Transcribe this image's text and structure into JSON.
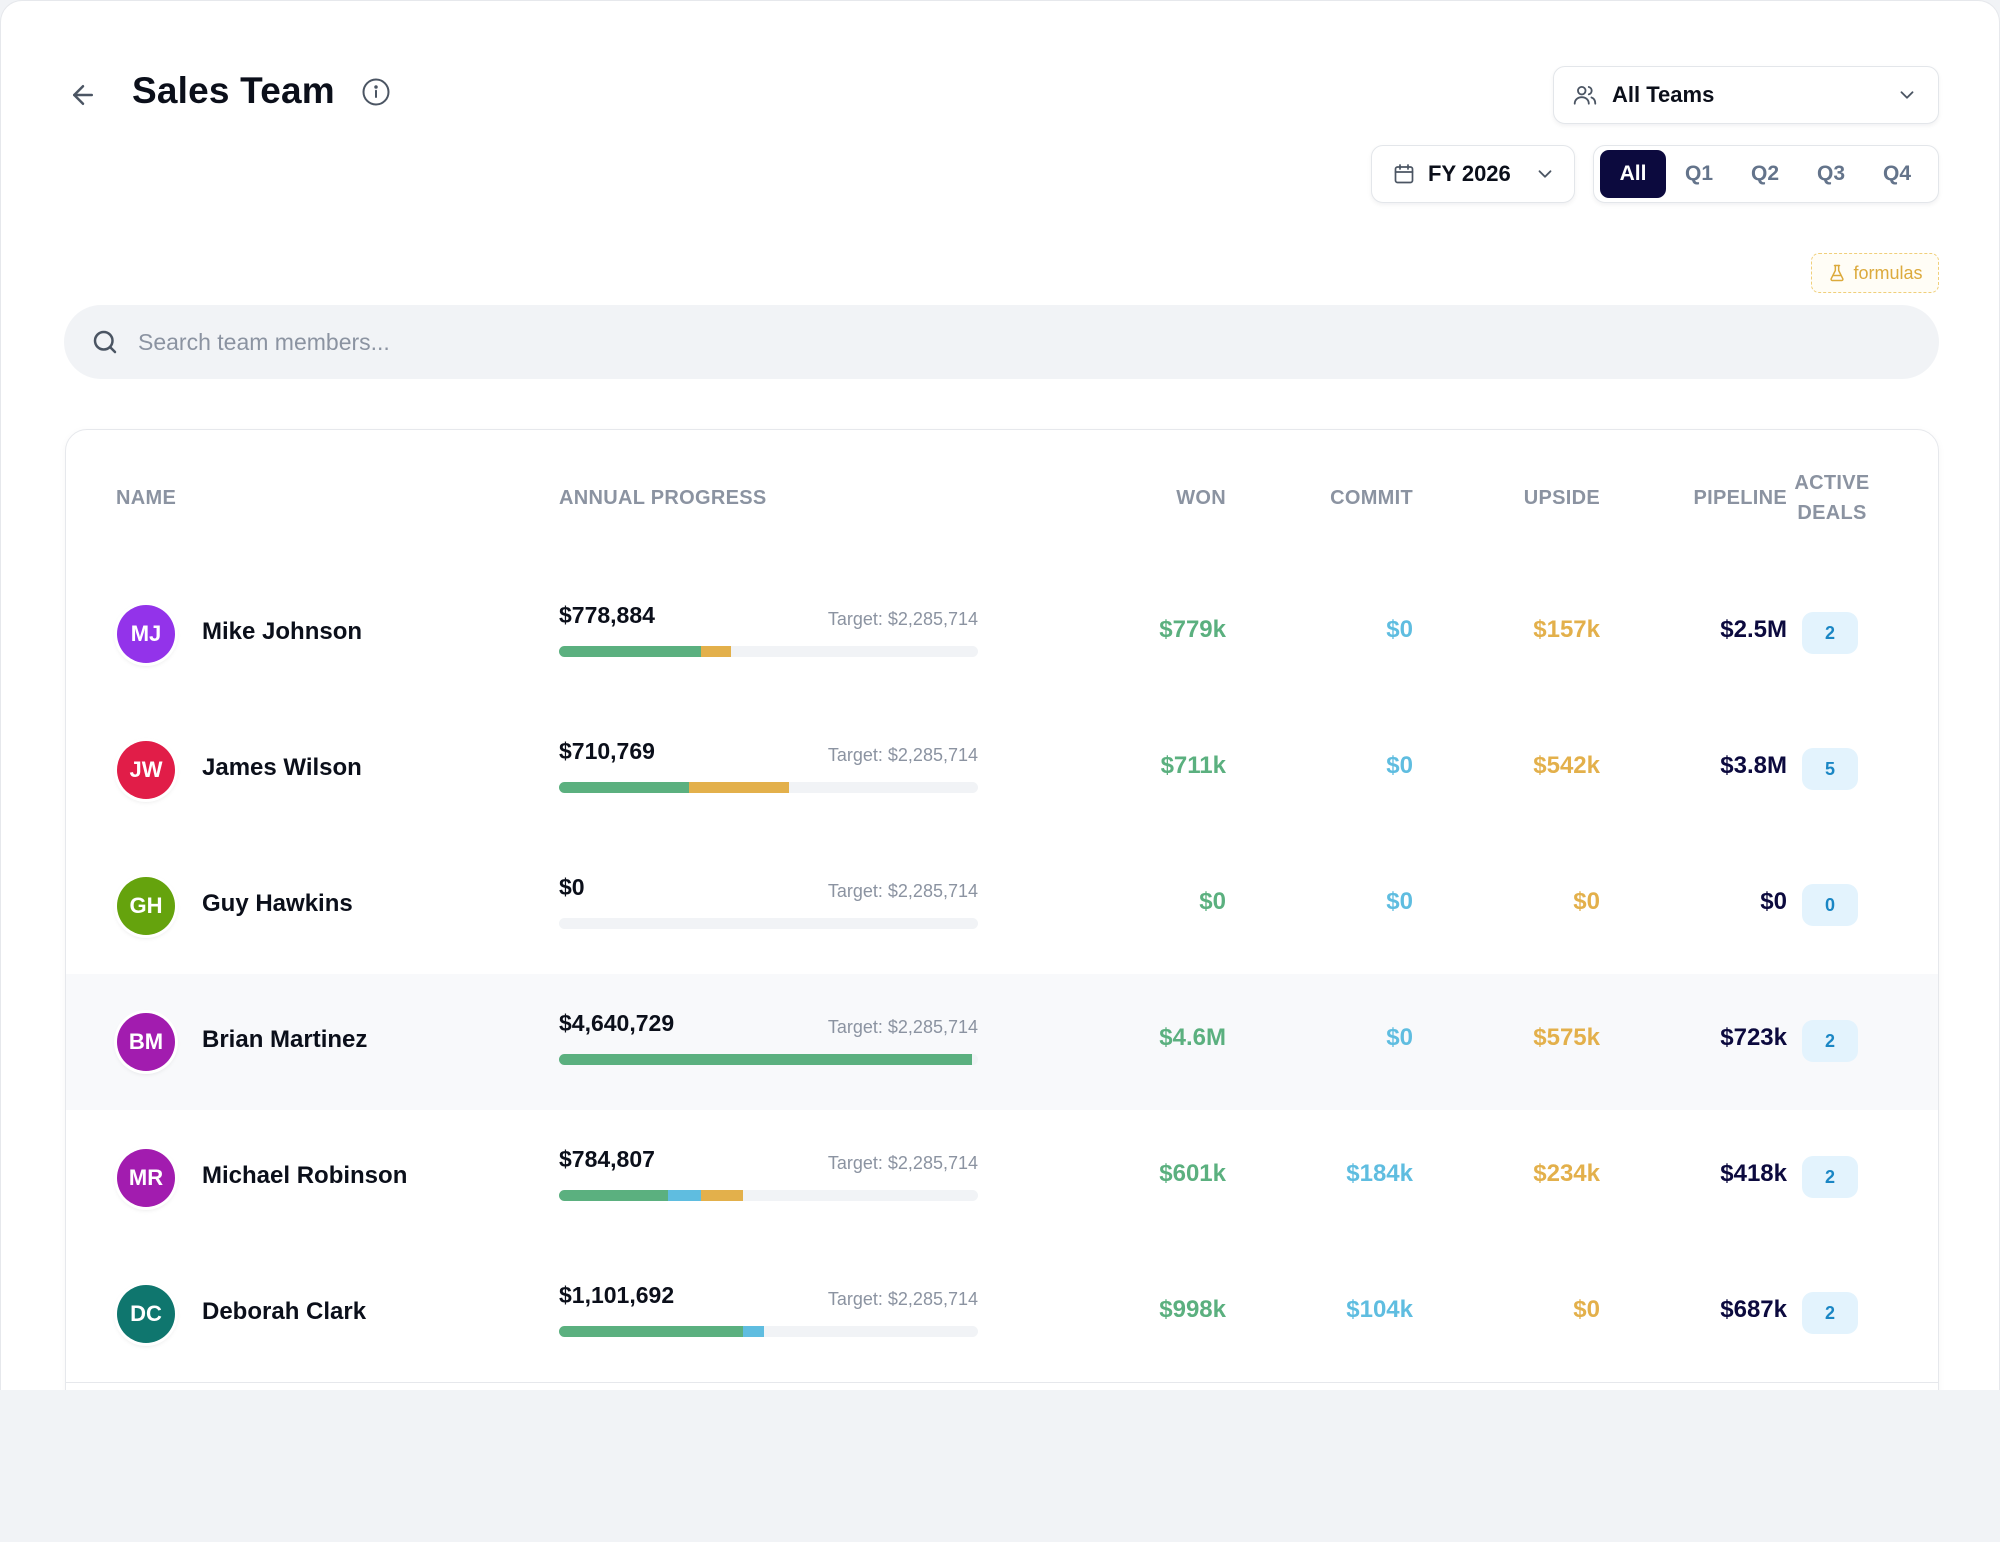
{
  "header": {
    "title": "Sales Team",
    "back_icon": "arrow-left-icon",
    "info_icon": "info-icon"
  },
  "filters": {
    "teams": {
      "label": "All Teams",
      "icon": "users-icon"
    },
    "year": {
      "label": "FY 2026",
      "icon": "calendar-icon"
    },
    "quarters": [
      {
        "label": "All",
        "active": true
      },
      {
        "label": "Q1",
        "active": false
      },
      {
        "label": "Q2",
        "active": false
      },
      {
        "label": "Q3",
        "active": false
      },
      {
        "label": "Q4",
        "active": false
      }
    ],
    "formulas_label": "formulas"
  },
  "search": {
    "placeholder": "Search team members...",
    "value": ""
  },
  "table": {
    "columns": {
      "name": "NAME",
      "progress": "ANNUAL PROGRESS",
      "won": "WON",
      "commit": "COMMIT",
      "upside": "UPSIDE",
      "pipeline": "PIPELINE",
      "deals_line1": "ACTIVE",
      "deals_line2": "DEALS"
    },
    "rows": [
      {
        "initials": "MJ",
        "name": "Mike Johnson",
        "avatar_color": "#9333ea",
        "amount": "$778,884",
        "target": "Target: $2,285,714",
        "progress": {
          "won": 0.34,
          "commit": 0.0,
          "upside": 0.07
        },
        "won": "$779k",
        "commit": "$0",
        "upside": "$157k",
        "pipeline": "$2.5M",
        "deals": "2",
        "highlighted": false
      },
      {
        "initials": "JW",
        "name": "James Wilson",
        "avatar_color": "#e11d48",
        "amount": "$710,769",
        "target": "Target: $2,285,714",
        "progress": {
          "won": 0.31,
          "commit": 0.0,
          "upside": 0.24
        },
        "won": "$711k",
        "commit": "$0",
        "upside": "$542k",
        "pipeline": "$3.8M",
        "deals": "5",
        "highlighted": false
      },
      {
        "initials": "GH",
        "name": "Guy Hawkins",
        "avatar_color": "#65a30d",
        "amount": "$0",
        "target": "Target: $2,285,714",
        "progress": {
          "won": 0.0,
          "commit": 0.0,
          "upside": 0.0
        },
        "won": "$0",
        "commit": "$0",
        "upside": "$0",
        "pipeline": "$0",
        "deals": "0",
        "highlighted": false
      },
      {
        "initials": "BM",
        "name": "Brian Martinez",
        "avatar_color": "#a21caf",
        "amount": "$4,640,729",
        "target": "Target: $2,285,714",
        "progress": {
          "won": 0.985,
          "commit": 0.0,
          "upside": 0.0
        },
        "won": "$4.6M",
        "commit": "$0",
        "upside": "$575k",
        "pipeline": "$723k",
        "deals": "2",
        "highlighted": true
      },
      {
        "initials": "MR",
        "name": "Michael Robinson",
        "avatar_color": "#a21caf",
        "amount": "$784,807",
        "target": "Target: $2,285,714",
        "progress": {
          "won": 0.26,
          "commit": 0.08,
          "upside": 0.1
        },
        "won": "$601k",
        "commit": "$184k",
        "upside": "$234k",
        "pipeline": "$418k",
        "deals": "2",
        "highlighted": false
      },
      {
        "initials": "DC",
        "name": "Deborah Clark",
        "avatar_color": "#0f766e",
        "amount": "$1,101,692",
        "target": "Target: $2,285,714",
        "progress": {
          "won": 0.44,
          "commit": 0.05,
          "upside": 0.0
        },
        "won": "$998k",
        "commit": "$104k",
        "upside": "$0",
        "pipeline": "$687k",
        "deals": "2",
        "highlighted": false
      }
    ]
  },
  "colors": {
    "won": "#5bb07f",
    "commit": "#5fbde0",
    "upside": "#e3b04b",
    "pipeline": "#0c0a3e",
    "active_tab": "#0c0a3e"
  }
}
